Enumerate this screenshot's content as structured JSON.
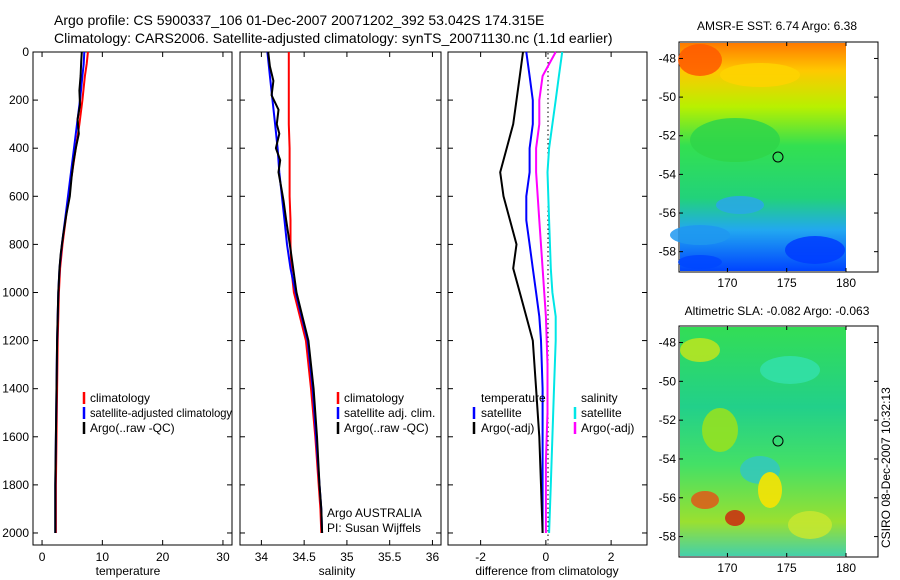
{
  "title": {
    "line1": "Argo profile: CS 5900337_106 01-Dec-2007 20071202_392 53.042S 174.315E",
    "line2": "Climatology: CARS2006. Satellite-adjusted climatology: synTS_20071130.nc (1.1d earlier)"
  },
  "side_text": "CSIRO 08-Dec-2007 10:32:13",
  "colors": {
    "climatology": "#ff0000",
    "satellite": "#0000ff",
    "argo": "#000000",
    "sat_salinity": "#00e6e6",
    "argo_salinity": "#ff00ff"
  },
  "chart_data": [
    {
      "type": "line",
      "name": "temperature-panel",
      "xlabel": "temperature",
      "xlim": [
        -1.5,
        31.5
      ],
      "ylim": [
        2050,
        0
      ],
      "xticks": [
        0,
        10,
        20,
        30
      ],
      "xtick_labels": [
        "0",
        "10",
        "20",
        "30"
      ],
      "yticks": [
        0,
        200,
        400,
        600,
        800,
        1000,
        1200,
        1400,
        1600,
        1800,
        2000
      ],
      "ytick_labels": [
        "0",
        "200",
        "400",
        "600",
        "800",
        "1000",
        "1200",
        "1400",
        "1600",
        "1800",
        "2000"
      ],
      "legend": [
        "climatology",
        "satellite-adjusted climatology",
        "Argo(..raw -QC)"
      ],
      "series": [
        {
          "name": "climatology",
          "color": "#ff0000",
          "x": [
            7.6,
            7.4,
            7.1,
            6.7,
            6.2,
            5.6,
            5.0,
            4.4,
            3.9,
            3.4,
            3.0,
            2.8,
            2.7,
            2.6,
            2.5,
            2.4,
            2.3,
            2.3,
            2.3
          ],
          "y": [
            0,
            50,
            100,
            200,
            300,
            400,
            500,
            600,
            700,
            800,
            900,
            1000,
            1100,
            1200,
            1400,
            1600,
            1800,
            1900,
            2000
          ]
        },
        {
          "name": "satellite-adjusted",
          "color": "#0000ff",
          "x": [
            7.0,
            6.9,
            6.7,
            6.3,
            5.8,
            5.3,
            4.8,
            4.3,
            3.8,
            3.3,
            2.9,
            2.7,
            2.6,
            2.5,
            2.4,
            2.3,
            2.2,
            2.2,
            2.2
          ],
          "y": [
            0,
            50,
            100,
            200,
            300,
            400,
            500,
            600,
            700,
            800,
            900,
            1000,
            1100,
            1200,
            1400,
            1600,
            1800,
            1900,
            2000
          ]
        },
        {
          "name": "argo",
          "color": "#000000",
          "x": [
            6.6,
            6.5,
            6.4,
            6.2,
            6.3,
            5.9,
            6.1,
            5.6,
            5.2,
            4.9,
            4.6,
            4.0,
            3.5,
            3.1,
            2.9,
            2.7,
            2.6,
            2.5,
            2.4,
            2.3,
            2.2,
            2.2
          ],
          "y": [
            0,
            40,
            100,
            160,
            220,
            280,
            340,
            400,
            460,
            520,
            600,
            680,
            760,
            840,
            900,
            1000,
            1100,
            1200,
            1400,
            1600,
            1800,
            2000
          ]
        }
      ]
    },
    {
      "type": "line",
      "name": "salinity-panel",
      "xlabel": "salinity",
      "xlim": [
        33.75,
        36.1
      ],
      "ylim": [
        2050,
        0
      ],
      "xticks": [
        34,
        34.5,
        35,
        35.5,
        36
      ],
      "xtick_labels": [
        "34",
        "34.5",
        "35",
        "35.5",
        "36"
      ],
      "legend": [
        "climatology",
        "satellite adj. clim.",
        "Argo(..raw -QC)"
      ],
      "annotation": [
        "Argo AUSTRALIA",
        "PI: Susan Wijffels"
      ],
      "series": [
        {
          "name": "climatology",
          "color": "#ff0000",
          "x": [
            34.32,
            34.32,
            34.32,
            34.32,
            34.33,
            34.33,
            34.33,
            34.34,
            34.34,
            34.35,
            34.38,
            34.45,
            34.52,
            34.58,
            34.63,
            34.67,
            34.69,
            34.7
          ],
          "y": [
            0,
            100,
            200,
            300,
            400,
            500,
            600,
            700,
            800,
            900,
            1000,
            1100,
            1200,
            1400,
            1600,
            1800,
            1900,
            2000
          ]
        },
        {
          "name": "satellite-adjusted",
          "color": "#0000ff",
          "x": [
            34.07,
            34.1,
            34.13,
            34.16,
            34.19,
            34.21,
            34.24,
            34.27,
            34.3,
            34.34,
            34.4,
            34.47,
            34.54,
            34.6,
            34.64,
            34.68,
            34.7,
            34.71
          ],
          "y": [
            0,
            100,
            200,
            300,
            400,
            500,
            600,
            700,
            800,
            900,
            1000,
            1100,
            1200,
            1400,
            1600,
            1800,
            1900,
            2000
          ]
        },
        {
          "name": "argo",
          "color": "#000000",
          "x": [
            34.08,
            34.1,
            34.14,
            34.12,
            34.2,
            34.18,
            34.21,
            34.17,
            34.22,
            34.2,
            34.23,
            34.26,
            34.29,
            34.34,
            34.41,
            34.48,
            34.55,
            34.61,
            34.65,
            34.68,
            34.7,
            34.71
          ],
          "y": [
            0,
            60,
            120,
            180,
            240,
            300,
            340,
            400,
            450,
            500,
            560,
            620,
            700,
            820,
            1000,
            1100,
            1200,
            1400,
            1600,
            1800,
            1900,
            2000
          ]
        }
      ]
    },
    {
      "type": "line",
      "name": "difference-panel",
      "xlabel": "difference from climatology",
      "xlim": [
        -3.0,
        3.1
      ],
      "ylim": [
        2050,
        0
      ],
      "xticks": [
        -2,
        0,
        2
      ],
      "xtick_labels": [
        "-2",
        "0",
        "2"
      ],
      "legend_left": [
        "temperature",
        "satellite",
        "Argo(-adj)"
      ],
      "legend_right": [
        "salinity",
        "satellite",
        "Argo(-adj)"
      ],
      "series": [
        {
          "name": "temp-satellite",
          "color": "#0000ff",
          "x": [
            -0.6,
            -0.5,
            -0.4,
            -0.4,
            -0.5,
            -0.5,
            -0.6,
            -0.6,
            -0.5,
            -0.4,
            -0.3,
            -0.2,
            -0.15,
            -0.1,
            -0.1,
            -0.1,
            -0.1
          ],
          "y": [
            0,
            100,
            200,
            300,
            400,
            500,
            600,
            700,
            800,
            900,
            1000,
            1100,
            1200,
            1400,
            1600,
            1800,
            2000
          ]
        },
        {
          "name": "temp-argo",
          "color": "#000000",
          "x": [
            -0.7,
            -0.8,
            -0.9,
            -1.0,
            -1.2,
            -1.4,
            -1.3,
            -1.1,
            -0.9,
            -1.0,
            -0.8,
            -0.6,
            -0.4,
            -0.3,
            -0.2,
            -0.15,
            -0.1
          ],
          "y": [
            0,
            100,
            200,
            300,
            400,
            500,
            600,
            700,
            800,
            900,
            1000,
            1100,
            1200,
            1400,
            1600,
            1800,
            2000
          ]
        },
        {
          "name": "sal-satellite",
          "color": "#00e6e6",
          "x": [
            0.5,
            0.4,
            0.3,
            0.2,
            0.1,
            0.05,
            0.1,
            0.15,
            0.2,
            0.3,
            0.3,
            0.25,
            0.2,
            0.15,
            0.1
          ],
          "y": [
            0,
            100,
            200,
            300,
            400,
            500,
            700,
            900,
            1000,
            1100,
            1200,
            1400,
            1600,
            1800,
            2000
          ]
        },
        {
          "name": "sal-argo",
          "color": "#ff00ff",
          "x": [
            0.3,
            -0.1,
            -0.2,
            -0.2,
            -0.3,
            -0.3,
            -0.2,
            -0.1,
            0.0,
            0.05,
            0.05,
            0.0,
            0.0
          ],
          "y": [
            0,
            100,
            200,
            300,
            400,
            500,
            700,
            900,
            1100,
            1300,
            1500,
            1700,
            2000
          ]
        }
      ]
    }
  ],
  "maps": [
    {
      "name": "sst-map",
      "title": "AMSR-E SST: 6.74 Argo: 6.38",
      "xticks": [
        170,
        175,
        180
      ],
      "xtick_labels": [
        "170",
        "175",
        "180"
      ],
      "yticks": [
        -48,
        -50,
        -52,
        -54,
        -56,
        -58
      ],
      "ytick_labels": [
        "-48",
        "-50",
        "-52",
        "-54",
        "-56",
        "-58"
      ]
    },
    {
      "name": "sla-map",
      "title": "Altimetric SLA: -0.082 Argo: -0.063",
      "xticks": [
        170,
        175,
        180
      ],
      "xtick_labels": [
        "170",
        "175",
        "180"
      ],
      "yticks": [
        -48,
        -50,
        -52,
        -54,
        -56,
        -58
      ],
      "ytick_labels": [
        "-48",
        "-50",
        "-52",
        "-54",
        "-56",
        "-58"
      ]
    }
  ]
}
